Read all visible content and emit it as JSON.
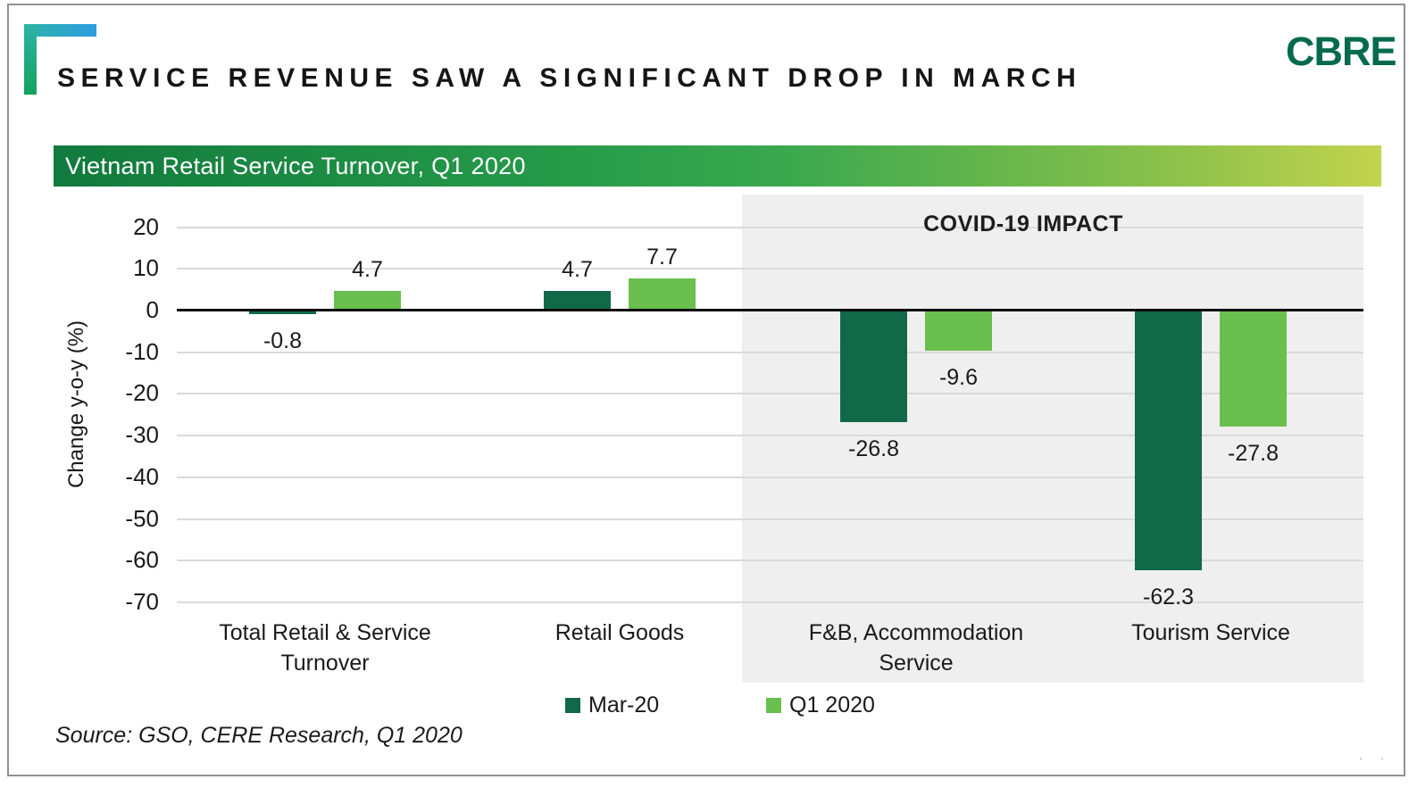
{
  "header": {
    "title": "SERVICE REVENUE SAW A SIGNIFICANT DROP IN MARCH",
    "logo": "CBRE"
  },
  "banner": {
    "title": "Vietnam Retail Service Turnover, Q1 2020"
  },
  "chart_data": {
    "type": "bar",
    "title": "Vietnam Retail Service Turnover, Q1 2020",
    "categories": [
      "Total Retail & Service Turnover",
      "Retail Goods",
      "F&B, Accommodation Service",
      "Tourism Service"
    ],
    "category_wrap": [
      [
        "Total Retail & Service",
        "Turnover"
      ],
      [
        "Retail Goods"
      ],
      [
        "F&B, Accommodation",
        "Service"
      ],
      [
        "Tourism Service"
      ]
    ],
    "series": [
      {
        "name": "Mar-20",
        "color": "#11694a",
        "values": [
          -0.8,
          4.7,
          -26.8,
          -62.3
        ]
      },
      {
        "name": "Q1 2020",
        "color": "#6abf4e",
        "values": [
          4.7,
          7.7,
          -9.6,
          -27.8
        ]
      }
    ],
    "xlabel": "",
    "ylabel": "Change y-o-y (%)",
    "ylim": [
      -70,
      20
    ],
    "yticks": [
      20,
      10,
      0,
      -10,
      -20,
      -30,
      -40,
      -50,
      -60,
      -70
    ],
    "grid": true,
    "legend_position": "bottom",
    "annotation": "COVID-19 IMPACT",
    "highlight_region": {
      "label": "COVID-19 IMPACT",
      "categories": [
        "F&B, Accommodation Service",
        "Tourism Service"
      ],
      "color": "#efefef"
    }
  },
  "footer": {
    "source": "Source: GSO, CERE Research, Q1 2020",
    "marks": "· ·"
  },
  "colors": {
    "dark_green": "#11694a",
    "light_green": "#6abf4e",
    "logo_green": "#046a4e",
    "banner_gradient_start": "#117a3d",
    "banner_gradient_end": "#c3d34e",
    "highlight_gray": "#efefef",
    "gridline": "#dadada"
  }
}
